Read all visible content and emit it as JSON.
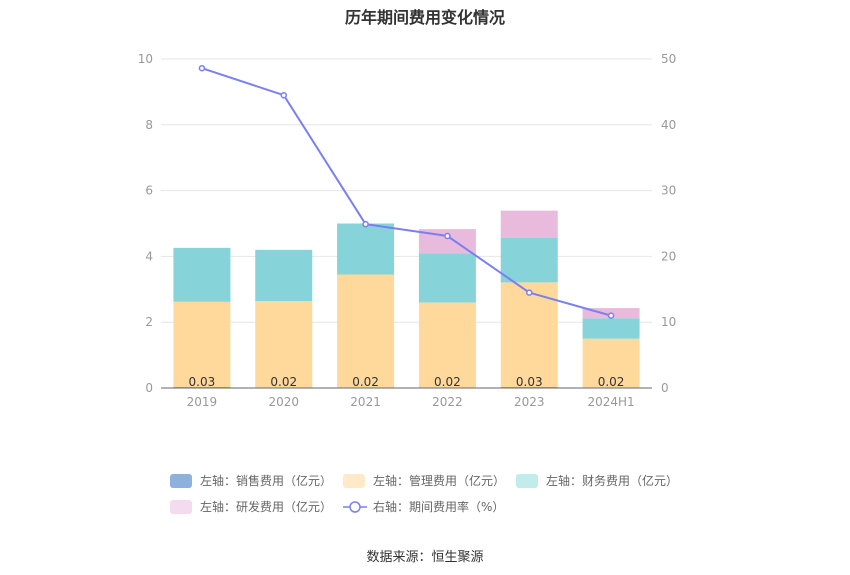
{
  "chart_data": {
    "type": "bar",
    "title": "历年期间费用变化情况",
    "categories": [
      "2019",
      "2020",
      "2021",
      "2022",
      "2023",
      "2024H1"
    ],
    "y_left": {
      "range": [
        0,
        10
      ],
      "ticks": [
        "0",
        "2",
        "4",
        "6",
        "8",
        "10"
      ]
    },
    "y_right": {
      "range": [
        0,
        50
      ],
      "ticks": [
        "0",
        "10",
        "20",
        "30",
        "40",
        "50"
      ]
    },
    "series": [
      {
        "name": "左轴：销售费用（亿元）",
        "axis": "left",
        "stack": true,
        "color": "#8DB0DD",
        "values": [
          0.03,
          0.02,
          0.02,
          0.02,
          0.03,
          0.02
        ]
      },
      {
        "name": "左轴：管理费用（亿元）",
        "axis": "left",
        "stack": true,
        "color": "#FFD99C",
        "values": [
          2.59,
          2.62,
          3.43,
          2.58,
          3.18,
          1.48
        ]
      },
      {
        "name": "左轴：财务费用（亿元）",
        "axis": "left",
        "stack": true,
        "color": "#86D4D9",
        "values": [
          1.64,
          1.56,
          1.55,
          1.49,
          1.36,
          0.62
        ]
      },
      {
        "name": "左轴：研发费用（亿元）",
        "axis": "left",
        "stack": true,
        "color": "#E8BBDC",
        "values": [
          0,
          0,
          0,
          0.74,
          0.82,
          0.31
        ]
      },
      {
        "name": "右轴：期间费用率（%）",
        "axis": "right",
        "type": "line",
        "color": "#7B7FF0",
        "values": [
          48.6,
          44.5,
          24.9,
          23.1,
          14.5,
          11.0
        ]
      }
    ],
    "bar_labels": [
      "0.03",
      "0.02",
      "0.02",
      "0.02",
      "0.03",
      "0.02"
    ],
    "legend_position": "bottom"
  },
  "legend_swatch_colors": [
    "#8DB0DD",
    "#FFE9C6",
    "#C2EBEC",
    "#F4DBEE",
    "#7B7FF0"
  ],
  "source": "数据来源：恒生聚源"
}
